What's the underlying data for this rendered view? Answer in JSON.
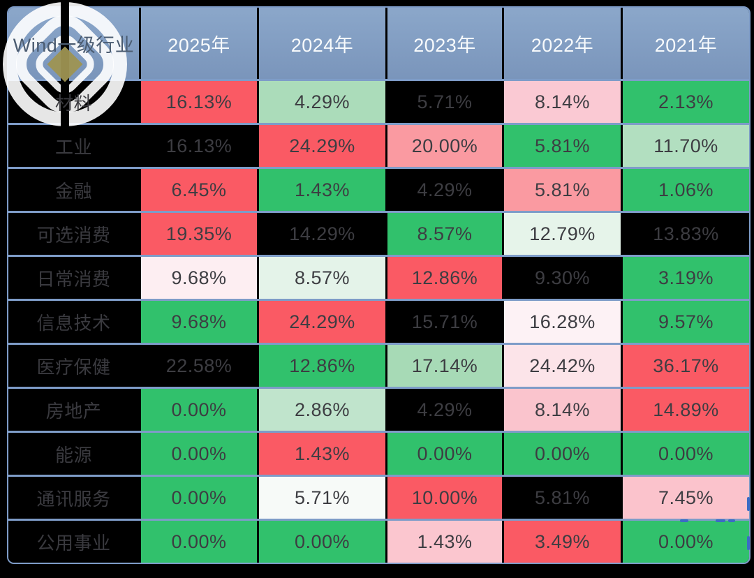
{
  "colors": {
    "page_bg": "#000000",
    "grid_line": "#7e9cc8",
    "header_top": "#8ba7ca",
    "header_bottom": "#7a95bb",
    "header_text": "#f7fafc",
    "header_label_text": "#4b5c71",
    "cell_text": "#3d3d42",
    "label_text": "#3a3a3f",
    "label_bg": "#000000",
    "dash": "#3b6bc5",
    "logo_gold": "#9e9352",
    "positive": "#fa5a64",
    "negative": "#31c16c",
    "na_black": "#000000"
  },
  "table": {
    "header": {
      "label": "Wind一级行业",
      "columns": [
        "2025年",
        "2024年",
        "2023年",
        "2022年",
        "2021年"
      ]
    },
    "rows": [
      {
        "label": "材料",
        "cells": [
          {
            "v": "16.13%",
            "bg": "#fa5a64"
          },
          {
            "v": "4.29%",
            "bg": "#abdcba"
          },
          {
            "v": "5.71%",
            "bg": "#000000"
          },
          {
            "v": "8.14%",
            "bg": "#fac9d3"
          },
          {
            "v": "2.13%",
            "bg": "#31c16c"
          }
        ]
      },
      {
        "label": "工业",
        "cells": [
          {
            "v": "16.13%",
            "bg": "#000000"
          },
          {
            "v": "24.29%",
            "bg": "#fa5a64"
          },
          {
            "v": "20.00%",
            "bg": "#fa9aa1"
          },
          {
            "v": "5.81%",
            "bg": "#31c16c"
          },
          {
            "v": "11.70%",
            "bg": "#b2dfc0"
          }
        ]
      },
      {
        "label": "金融",
        "cells": [
          {
            "v": "6.45%",
            "bg": "#fa5a64"
          },
          {
            "v": "1.43%",
            "bg": "#31c16c"
          },
          {
            "v": "4.29%",
            "bg": "#000000"
          },
          {
            "v": "5.81%",
            "bg": "#fa9aa1"
          },
          {
            "v": "1.06%",
            "bg": "#31c16c"
          }
        ]
      },
      {
        "label": "可选消费",
        "cells": [
          {
            "v": "19.35%",
            "bg": "#fa5a64"
          },
          {
            "v": "14.29%",
            "bg": "#000000"
          },
          {
            "v": "8.57%",
            "bg": "#31c16c"
          },
          {
            "v": "12.79%",
            "bg": "#e6f4ea"
          },
          {
            "v": "13.83%",
            "bg": "#000000"
          }
        ]
      },
      {
        "label": "日常消费",
        "cells": [
          {
            "v": "9.68%",
            "bg": "#fdeef2"
          },
          {
            "v": "8.57%",
            "bg": "#e4f3e9"
          },
          {
            "v": "12.86%",
            "bg": "#fa5a64"
          },
          {
            "v": "9.30%",
            "bg": "#000000"
          },
          {
            "v": "3.19%",
            "bg": "#31c16c"
          }
        ]
      },
      {
        "label": "信息技术",
        "cells": [
          {
            "v": "9.68%",
            "bg": "#31c16c"
          },
          {
            "v": "24.29%",
            "bg": "#fa5a64"
          },
          {
            "v": "15.71%",
            "bg": "#000000"
          },
          {
            "v": "16.28%",
            "bg": "#fdf2f5"
          },
          {
            "v": "9.57%",
            "bg": "#31c16c"
          }
        ]
      },
      {
        "label": "医疗保健",
        "cells": [
          {
            "v": "22.58%",
            "bg": "#000000"
          },
          {
            "v": "12.86%",
            "bg": "#31c16c"
          },
          {
            "v": "17.14%",
            "bg": "#a7dab6"
          },
          {
            "v": "24.42%",
            "bg": "#fce4e9"
          },
          {
            "v": "36.17%",
            "bg": "#fa5a64"
          }
        ]
      },
      {
        "label": "房地产",
        "cells": [
          {
            "v": "0.00%",
            "bg": "#31c16c"
          },
          {
            "v": "2.86%",
            "bg": "#c0e4cc"
          },
          {
            "v": "4.29%",
            "bg": "#000000"
          },
          {
            "v": "8.14%",
            "bg": "#fac4cd"
          },
          {
            "v": "14.89%",
            "bg": "#fa5a64"
          }
        ]
      },
      {
        "label": "能源",
        "cells": [
          {
            "v": "0.00%",
            "bg": "#31c16c"
          },
          {
            "v": "1.43%",
            "bg": "#fa5a64"
          },
          {
            "v": "0.00%",
            "bg": "#31c16c"
          },
          {
            "v": "0.00%",
            "bg": "#31c16c"
          },
          {
            "v": "0.00%",
            "bg": "#31c16c"
          }
        ]
      },
      {
        "label": "通讯服务",
        "cells": [
          {
            "v": "0.00%",
            "bg": "#31c16c"
          },
          {
            "v": "5.71%",
            "bg": "#f7faf8"
          },
          {
            "v": "10.00%",
            "bg": "#fa5a64"
          },
          {
            "v": "5.81%",
            "bg": "#000000"
          },
          {
            "v": "7.45%",
            "bg": "#fbc3cc"
          }
        ]
      },
      {
        "label": "公用事业",
        "cells": [
          {
            "v": "0.00%",
            "bg": "#31c16c"
          },
          {
            "v": "0.00%",
            "bg": "#31c16c"
          },
          {
            "v": "1.43%",
            "bg": "#fbc6cf"
          },
          {
            "v": "3.49%",
            "bg": "#fa5a64"
          },
          {
            "v": "0.00%",
            "bg": "#31c16c"
          }
        ]
      }
    ]
  },
  "chart_data": {
    "type": "heatmap",
    "columns": [
      "2025年",
      "2024年",
      "2023年",
      "2022年",
      "2021年"
    ],
    "rows": [
      "材料",
      "工业",
      "金融",
      "可选消费",
      "日常消费",
      "信息技术",
      "医疗保健",
      "房地产",
      "能源",
      "通讯服务",
      "公用事业"
    ],
    "unit": "%",
    "values": [
      [
        16.13,
        4.29,
        5.71,
        8.14,
        2.13
      ],
      [
        16.13,
        24.29,
        20.0,
        5.81,
        11.7
      ],
      [
        6.45,
        1.43,
        4.29,
        5.81,
        1.06
      ],
      [
        19.35,
        14.29,
        8.57,
        12.79,
        13.83
      ],
      [
        9.68,
        8.57,
        12.86,
        9.3,
        3.19
      ],
      [
        9.68,
        24.29,
        15.71,
        16.28,
        9.57
      ],
      [
        22.58,
        12.86,
        17.14,
        24.42,
        36.17
      ],
      [
        0.0,
        2.86,
        4.29,
        8.14,
        14.89
      ],
      [
        0.0,
        1.43,
        0.0,
        0.0,
        0.0
      ],
      [
        0.0,
        5.71,
        10.0,
        5.81,
        7.45
      ],
      [
        0.0,
        0.0,
        1.43,
        3.49,
        0.0
      ]
    ]
  }
}
